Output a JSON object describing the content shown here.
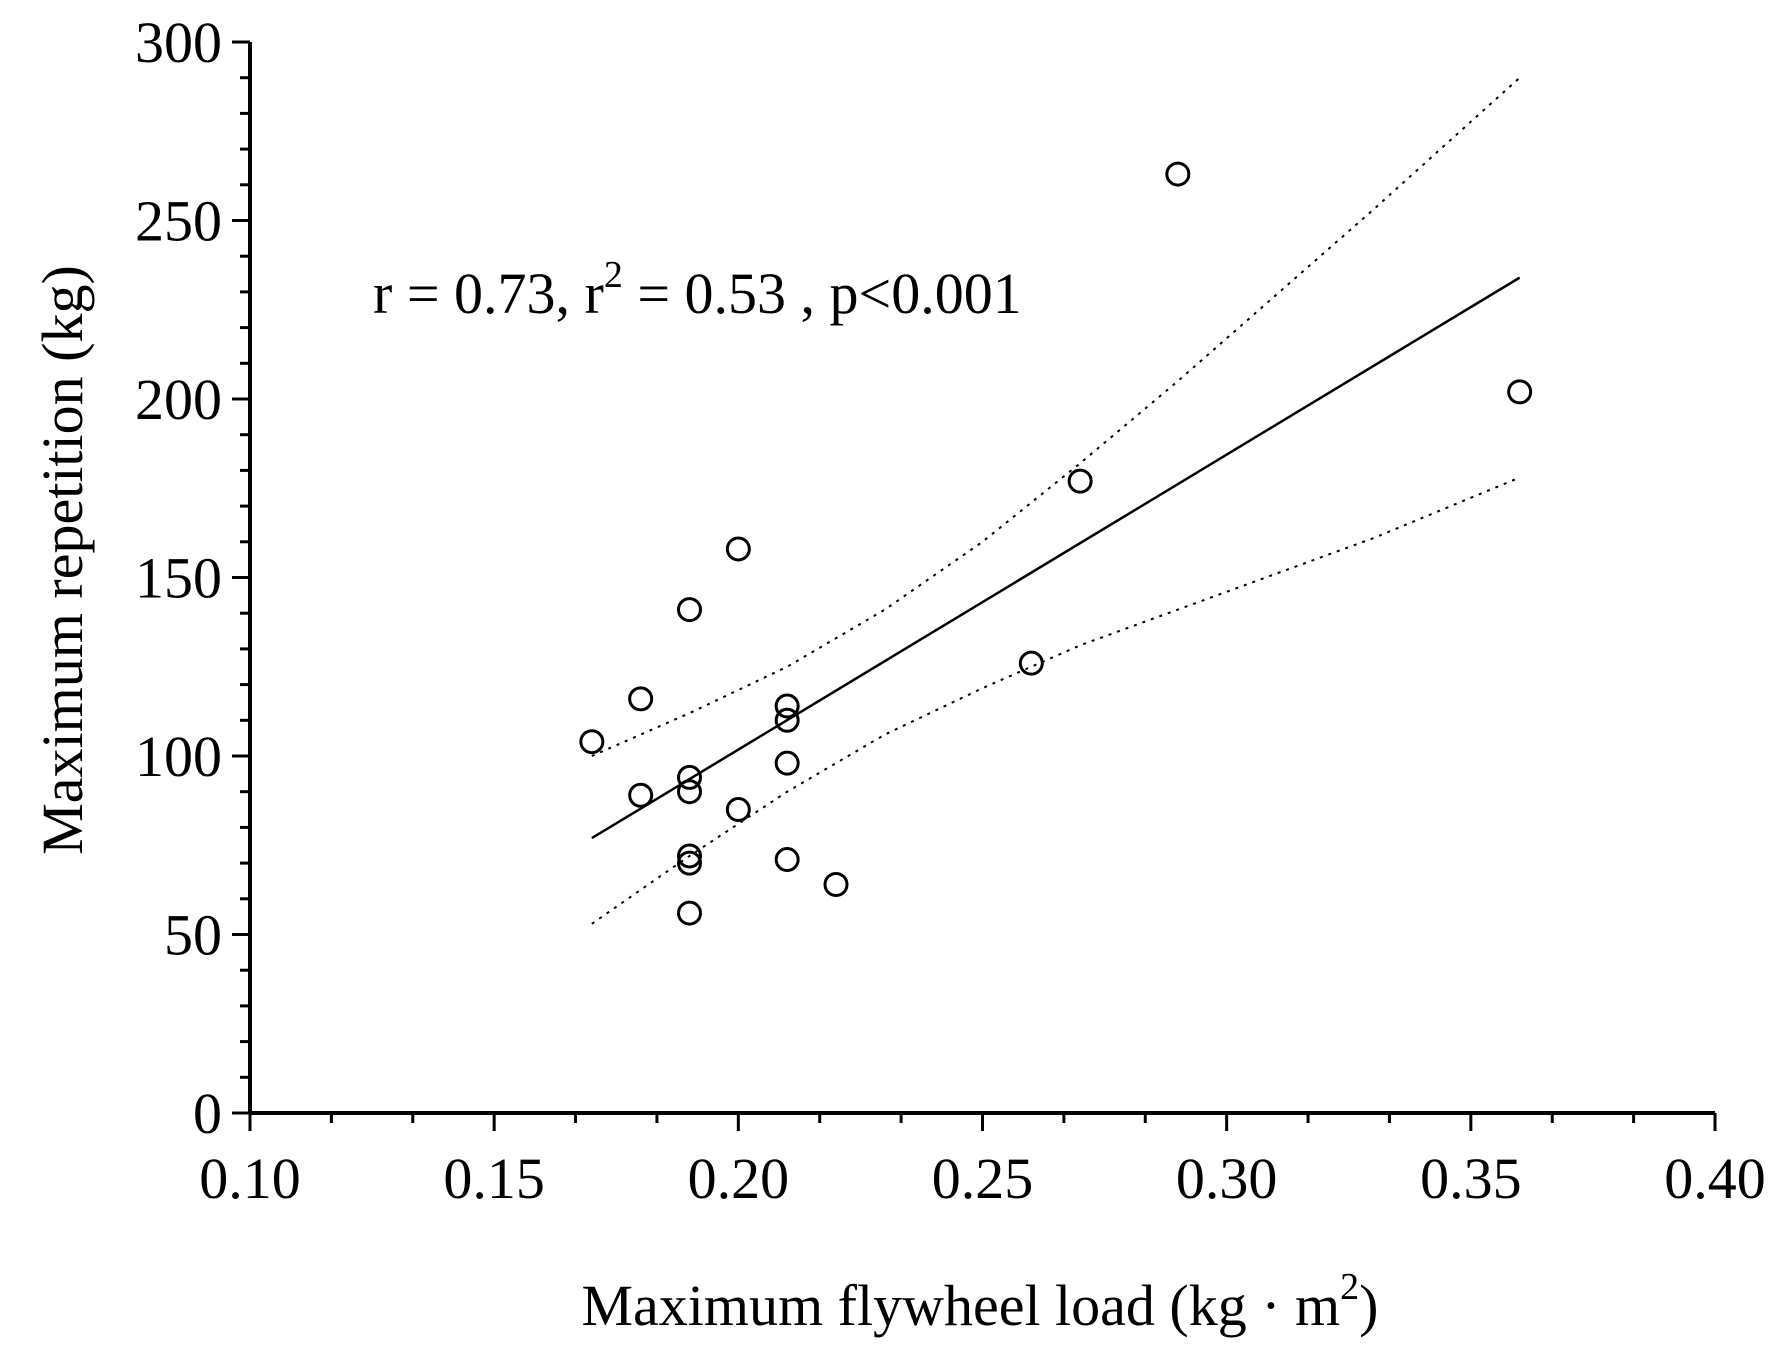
{
  "chart_data": {
    "type": "scatter",
    "title": "",
    "xlabel": "Maximum flywheel load (kg · m",
    "xlabel_superscript": "2",
    "xlabel_close": ")",
    "ylabel": "Maximum repetition (kg)",
    "xlim": [
      0.1,
      0.4
    ],
    "ylim": [
      0,
      300
    ],
    "x_ticks": [
      0.1,
      0.15,
      0.2,
      0.25,
      0.3,
      0.35,
      0.4
    ],
    "x_tick_labels": [
      "0.10",
      "0.15",
      "0.20",
      "0.25",
      "0.30",
      "0.35",
      "0.40"
    ],
    "x_minor_step": 0.0167,
    "y_ticks": [
      0,
      50,
      100,
      150,
      200,
      250,
      300
    ],
    "y_tick_labels": [
      "0",
      "50",
      "100",
      "150",
      "200",
      "250",
      "300"
    ],
    "y_minor_step": 10,
    "annotation": {
      "part1": "r = 0.73, r",
      "sup": "2",
      "part2": " = 0.53 , p<0.001"
    },
    "points": [
      {
        "x": 0.17,
        "y": 104
      },
      {
        "x": 0.18,
        "y": 116
      },
      {
        "x": 0.18,
        "y": 89
      },
      {
        "x": 0.19,
        "y": 141
      },
      {
        "x": 0.19,
        "y": 94
      },
      {
        "x": 0.19,
        "y": 90
      },
      {
        "x": 0.19,
        "y": 72
      },
      {
        "x": 0.19,
        "y": 70
      },
      {
        "x": 0.19,
        "y": 56
      },
      {
        "x": 0.2,
        "y": 158
      },
      {
        "x": 0.2,
        "y": 85
      },
      {
        "x": 0.21,
        "y": 114
      },
      {
        "x": 0.21,
        "y": 110
      },
      {
        "x": 0.21,
        "y": 98
      },
      {
        "x": 0.21,
        "y": 71
      },
      {
        "x": 0.22,
        "y": 64
      },
      {
        "x": 0.26,
        "y": 126
      },
      {
        "x": 0.27,
        "y": 177
      },
      {
        "x": 0.29,
        "y": 263
      },
      {
        "x": 0.36,
        "y": 202
      }
    ],
    "regression_line": {
      "x": [
        0.17,
        0.36
      ],
      "y": [
        77,
        234
      ]
    },
    "ci_upper": {
      "x": [
        0.17,
        0.19,
        0.21,
        0.23,
        0.25,
        0.27,
        0.29,
        0.31,
        0.33,
        0.36
      ],
      "y": [
        100,
        112,
        125,
        141,
        160,
        182,
        205,
        229,
        253,
        290
      ]
    },
    "ci_lower": {
      "x": [
        0.17,
        0.19,
        0.21,
        0.23,
        0.25,
        0.27,
        0.29,
        0.31,
        0.33,
        0.36
      ],
      "y": [
        53,
        72,
        90,
        106,
        119,
        131,
        141,
        151,
        161,
        178
      ]
    },
    "grid": false,
    "legend": "none"
  }
}
